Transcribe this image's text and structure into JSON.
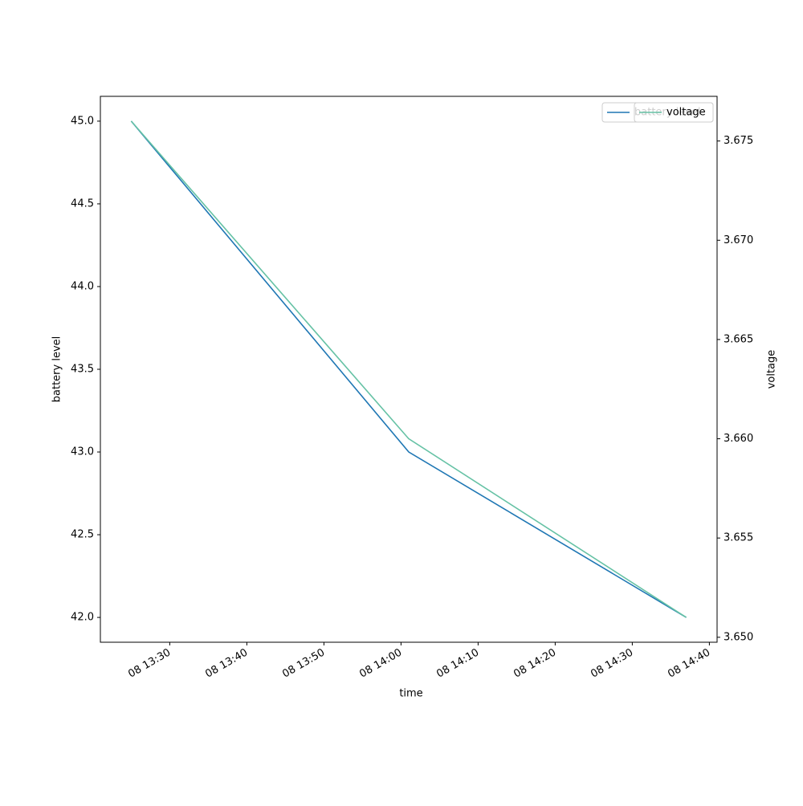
{
  "chart_data": {
    "type": "line",
    "x_label": "time",
    "y_label": "battery level",
    "y2_label": "voltage",
    "x": [
      "08 13:25",
      "08 14:01",
      "08 14:37"
    ],
    "xlim": [
      "08 13:21",
      "08 14:41"
    ],
    "xticks": [
      "08 13:30",
      "08 13:40",
      "08 13:50",
      "08 14:00",
      "08 14:10",
      "08 14:20",
      "08 14:30",
      "08 14:40"
    ],
    "series": [
      {
        "name": "battery level",
        "color": "#1f77b4",
        "values": [
          45,
          43,
          42
        ]
      },
      {
        "name": "voltage",
        "color": "#66c2a5",
        "values": [
          3.676,
          3.66,
          3.651
        ],
        "axis": "y2"
      }
    ],
    "ylim": [
      41.85,
      45.15
    ],
    "yticks": [
      {
        "value": 42,
        "label": "42.0"
      },
      42.5,
      {
        "value": 43,
        "label": "43.0"
      },
      43.5,
      {
        "value": 44,
        "label": "44.0"
      },
      44.5,
      {
        "value": 45,
        "label": "45.0"
      }
    ],
    "y2lim": [
      3.64975,
      3.67725
    ],
    "y2ticks": [
      {
        "value": 3.65,
        "label": "3.650"
      },
      3.655,
      {
        "value": 3.66,
        "label": "3.660"
      },
      3.665,
      {
        "value": 3.67,
        "label": "3.670"
      },
      3.675
    ],
    "grid": false,
    "legend": "upper right"
  }
}
